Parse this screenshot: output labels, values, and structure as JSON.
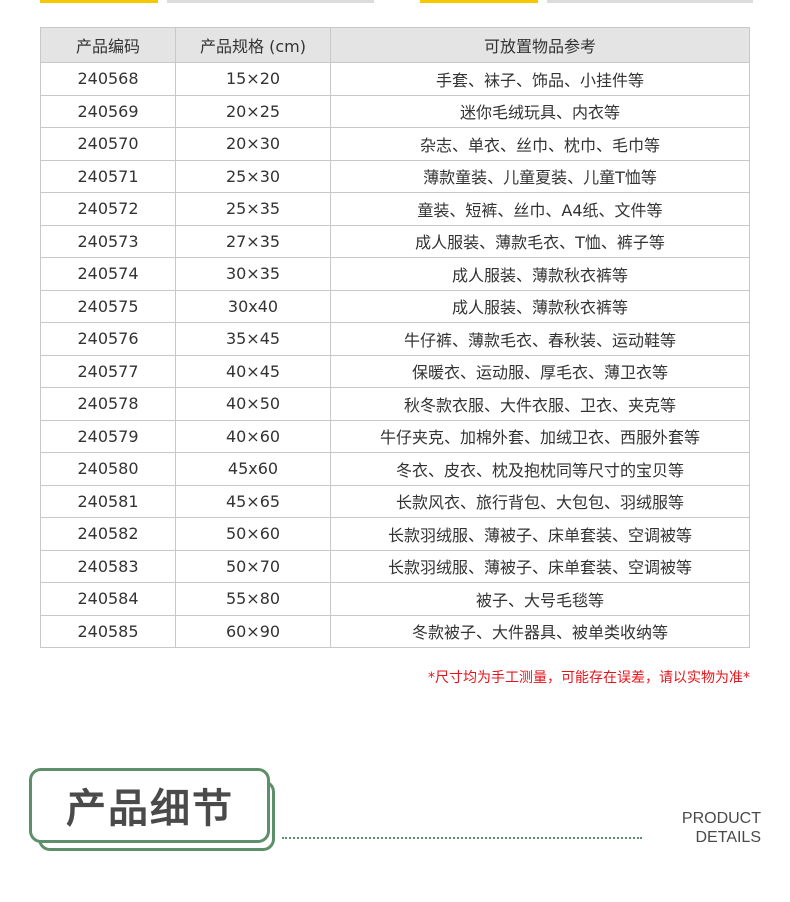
{
  "colors": {
    "accent_yellow": "#f5c800",
    "divider_gray": "#dcdcdc",
    "note_red": "#e8141b",
    "frame_green": "#5e8f6b"
  },
  "table": {
    "headers": [
      "产品编码",
      "产品规格 (cm)",
      "可放置物品参考"
    ],
    "rows": [
      [
        "240568",
        "15×20",
        "手套、袜子、饰品、小挂件等"
      ],
      [
        "240569",
        "20×25",
        "迷你毛绒玩具、内衣等"
      ],
      [
        "240570",
        "20×30",
        "杂志、单衣、丝巾、枕巾、毛巾等"
      ],
      [
        "240571",
        "25×30",
        "薄款童装、儿童夏装、儿童T恤等"
      ],
      [
        "240572",
        "25×35",
        "童装、短裤、丝巾、A4纸、文件等"
      ],
      [
        "240573",
        "27×35",
        "成人服装、薄款毛衣、T恤、裤子等"
      ],
      [
        "240574",
        "30×35",
        "成人服装、薄款秋衣裤等"
      ],
      [
        "240575",
        "30x40",
        "成人服装、薄款秋衣裤等"
      ],
      [
        "240576",
        "35×45",
        "牛仔裤、薄款毛衣、春秋装、运动鞋等"
      ],
      [
        "240577",
        "40×45",
        "保暖衣、运动服、厚毛衣、薄卫衣等"
      ],
      [
        "240578",
        "40×50",
        "秋冬款衣服、大件衣服、卫衣、夹克等"
      ],
      [
        "240579",
        "40×60",
        "牛仔夹克、加棉外套、加绒卫衣、西服外套等"
      ],
      [
        "240580",
        "45x60",
        "冬衣、皮衣、枕及抱枕同等尺寸的宝贝等"
      ],
      [
        "240581",
        "45×65",
        "长款风衣、旅行背包、大包包、羽绒服等"
      ],
      [
        "240582",
        "50×60",
        "长款羽绒服、薄被子、床单套装、空调被等"
      ],
      [
        "240583",
        "50×70",
        "长款羽绒服、薄被子、床单套装、空调被等"
      ],
      [
        "240584",
        "55×80",
        "被子、大号毛毯等"
      ],
      [
        "240585",
        "60×90",
        "冬款被子、大件器具、被单类收纳等"
      ]
    ]
  },
  "note": "*尺寸均为手工测量，可能存在误差，请以实物为准*",
  "section": {
    "title": "产品细节",
    "subtitle_line1": "PRODUCT",
    "subtitle_line2": "DETAILS"
  }
}
